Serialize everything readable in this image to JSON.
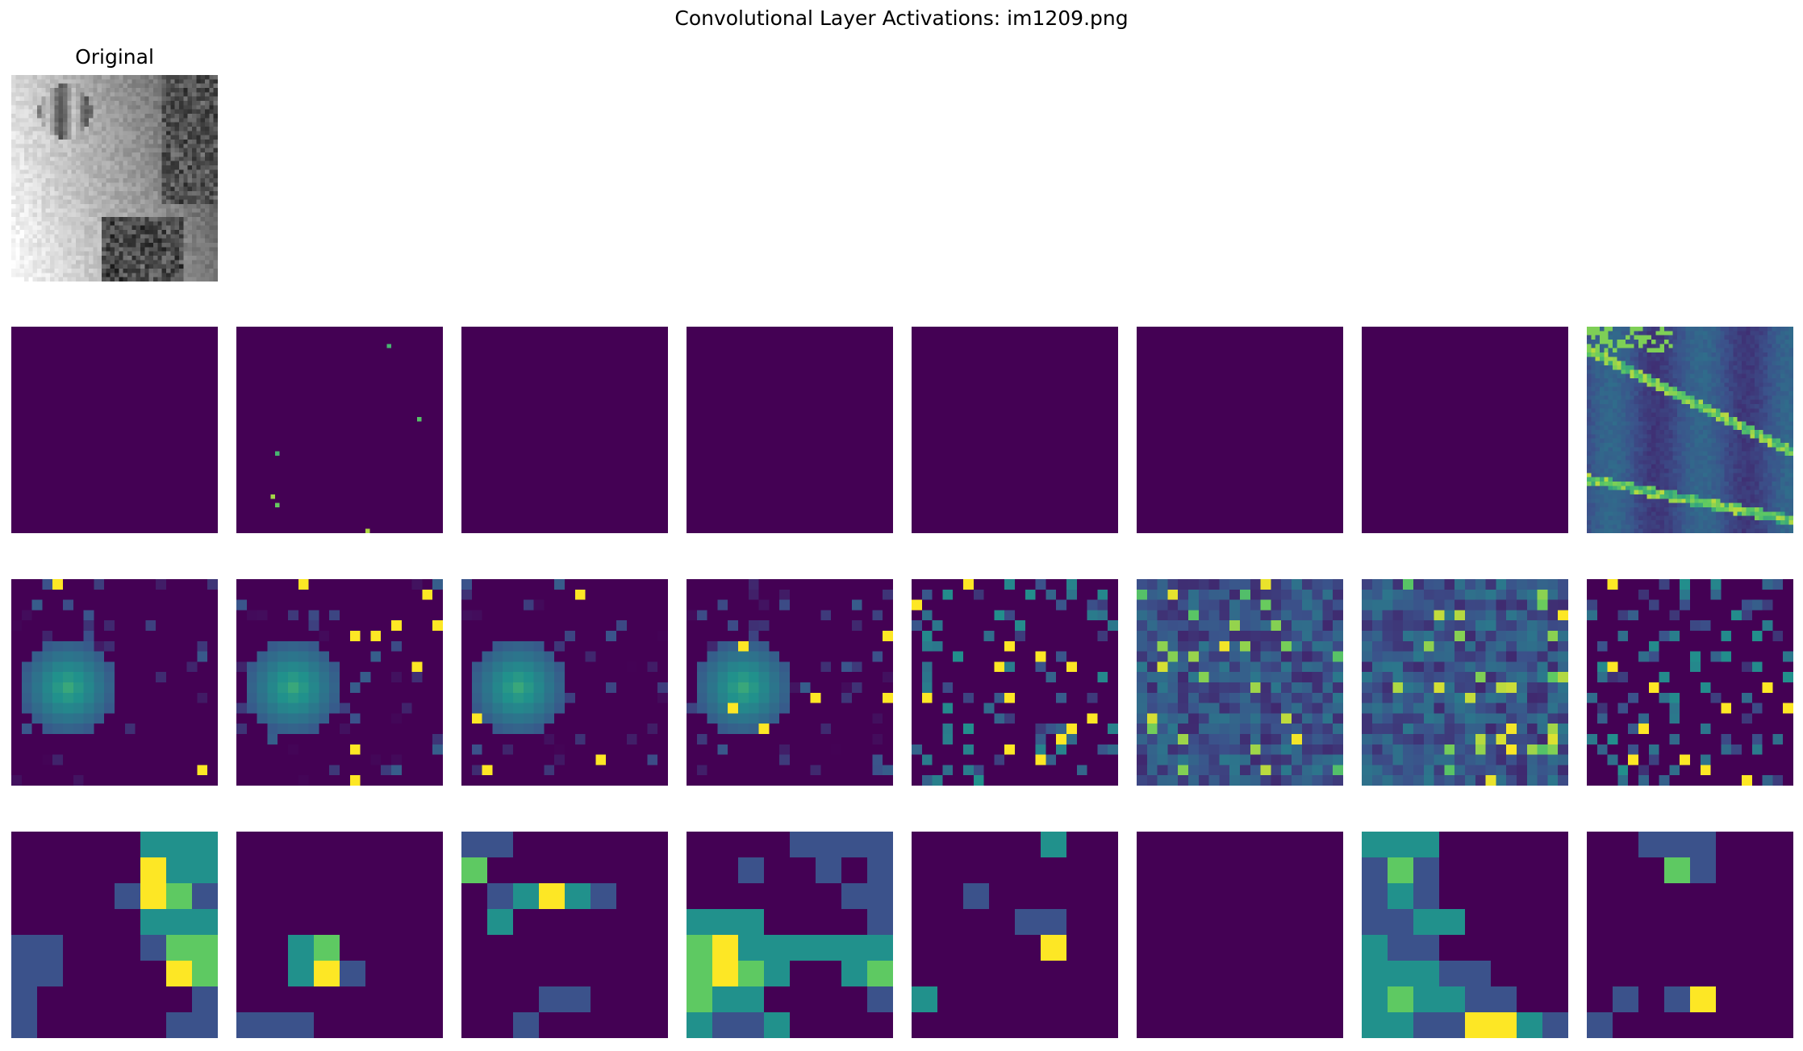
{
  "figure": {
    "title": "Convolutional Layer Activations: im1209.png",
    "original_label": "Original"
  },
  "colormap": {
    "name": "viridis",
    "stops": [
      "#440154",
      "#3b528b",
      "#21918c",
      "#5ec962",
      "#fde725"
    ]
  },
  "original_image": {
    "kind": "grayscale-photo",
    "description_text": ""
  },
  "layer1_maps": [
    {
      "size": 48,
      "mode": "empty",
      "seed": 11
    },
    {
      "size": 48,
      "mode": "sparse",
      "seed": 12
    },
    {
      "size": 48,
      "mode": "empty",
      "seed": 13
    },
    {
      "size": 48,
      "mode": "empty",
      "seed": 14
    },
    {
      "size": 48,
      "mode": "empty",
      "seed": 15
    },
    {
      "size": 48,
      "mode": "empty",
      "seed": 16
    },
    {
      "size": 48,
      "mode": "empty",
      "seed": 17
    },
    {
      "size": 48,
      "mode": "edges",
      "seed": 18
    }
  ],
  "layer2_maps": [
    {
      "size": 20,
      "mode": "blob",
      "seed": 21
    },
    {
      "size": 20,
      "mode": "blob",
      "seed": 22
    },
    {
      "size": 20,
      "mode": "blob",
      "seed": 23
    },
    {
      "size": 20,
      "mode": "blob",
      "seed": 24
    },
    {
      "size": 20,
      "mode": "scatter",
      "seed": 25
    },
    {
      "size": 20,
      "mode": "dense",
      "seed": 26
    },
    {
      "size": 20,
      "mode": "dense",
      "seed": 27
    },
    {
      "size": 20,
      "mode": "scatter",
      "seed": 28
    }
  ],
  "layer3_maps": [
    {
      "size": 8,
      "grid": [
        [
          0,
          0,
          0,
          0,
          0,
          2,
          2,
          2
        ],
        [
          0,
          0,
          0,
          0,
          0,
          4,
          2,
          2
        ],
        [
          0,
          0,
          0,
          0,
          1,
          4,
          3,
          1
        ],
        [
          0,
          0,
          0,
          0,
          0,
          2,
          2,
          2
        ],
        [
          1,
          1,
          0,
          0,
          0,
          1,
          3,
          3
        ],
        [
          1,
          1,
          0,
          0,
          0,
          0,
          4,
          3
        ],
        [
          1,
          0,
          0,
          0,
          0,
          0,
          0,
          1
        ],
        [
          1,
          0,
          0,
          0,
          0,
          0,
          1,
          1
        ]
      ]
    },
    {
      "size": 8,
      "grid": [
        [
          0,
          0,
          0,
          0,
          0,
          0,
          0,
          0
        ],
        [
          0,
          0,
          0,
          0,
          0,
          0,
          0,
          0
        ],
        [
          0,
          0,
          0,
          0,
          0,
          0,
          0,
          0
        ],
        [
          0,
          0,
          0,
          0,
          0,
          0,
          0,
          0
        ],
        [
          0,
          0,
          2,
          3,
          0,
          0,
          0,
          0
        ],
        [
          0,
          0,
          2,
          4,
          1,
          0,
          0,
          0
        ],
        [
          0,
          0,
          0,
          0,
          0,
          0,
          0,
          0
        ],
        [
          1,
          1,
          1,
          0,
          0,
          0,
          0,
          0
        ]
      ]
    },
    {
      "size": 8,
      "grid": [
        [
          1,
          1,
          0,
          0,
          0,
          0,
          0,
          0
        ],
        [
          3,
          0,
          0,
          0,
          0,
          0,
          0,
          0
        ],
        [
          0,
          1,
          2,
          4,
          2,
          1,
          0,
          0
        ],
        [
          0,
          2,
          0,
          0,
          0,
          0,
          0,
          0
        ],
        [
          0,
          0,
          0,
          0,
          0,
          0,
          0,
          0
        ],
        [
          0,
          0,
          0,
          0,
          0,
          0,
          0,
          0
        ],
        [
          0,
          0,
          0,
          1,
          1,
          0,
          0,
          0
        ],
        [
          0,
          0,
          1,
          0,
          0,
          0,
          0,
          0
        ]
      ]
    },
    {
      "size": 8,
      "grid": [
        [
          0,
          0,
          0,
          0,
          1,
          1,
          1,
          1
        ],
        [
          0,
          0,
          1,
          0,
          0,
          1,
          0,
          1
        ],
        [
          0,
          0,
          0,
          0,
          0,
          0,
          1,
          1
        ],
        [
          2,
          2,
          2,
          0,
          0,
          0,
          0,
          1
        ],
        [
          3,
          4,
          2,
          2,
          2,
          2,
          2,
          2
        ],
        [
          3,
          4,
          3,
          2,
          0,
          0,
          2,
          3
        ],
        [
          3,
          2,
          2,
          0,
          0,
          0,
          0,
          1
        ],
        [
          2,
          1,
          1,
          2,
          0,
          0,
          0,
          0
        ]
      ]
    },
    {
      "size": 8,
      "grid": [
        [
          0,
          0,
          0,
          0,
          0,
          2,
          0,
          0
        ],
        [
          0,
          0,
          0,
          0,
          0,
          0,
          0,
          0
        ],
        [
          0,
          0,
          1,
          0,
          0,
          0,
          0,
          0
        ],
        [
          0,
          0,
          0,
          0,
          1,
          1,
          0,
          0
        ],
        [
          0,
          0,
          0,
          0,
          0,
          4,
          0,
          0
        ],
        [
          0,
          0,
          0,
          0,
          0,
          0,
          0,
          0
        ],
        [
          2,
          0,
          0,
          0,
          0,
          0,
          0,
          0
        ],
        [
          0,
          0,
          0,
          0,
          0,
          0,
          0,
          0
        ]
      ]
    },
    {
      "size": 8,
      "grid": [
        [
          0,
          0,
          0,
          0,
          0,
          0,
          0,
          0
        ],
        [
          0,
          0,
          0,
          0,
          0,
          0,
          0,
          0
        ],
        [
          0,
          0,
          0,
          0,
          0,
          0,
          0,
          0
        ],
        [
          0,
          0,
          0,
          0,
          0,
          0,
          0,
          0
        ],
        [
          0,
          0,
          0,
          0,
          0,
          0,
          0,
          0
        ],
        [
          0,
          0,
          0,
          0,
          0,
          0,
          0,
          0
        ],
        [
          0,
          0,
          0,
          0,
          0,
          0,
          0,
          0
        ],
        [
          0,
          0,
          0,
          0,
          0,
          0,
          0,
          0
        ]
      ]
    },
    {
      "size": 8,
      "grid": [
        [
          2,
          2,
          2,
          0,
          0,
          0,
          0,
          0
        ],
        [
          1,
          3,
          1,
          0,
          0,
          0,
          0,
          0
        ],
        [
          1,
          2,
          1,
          0,
          0,
          0,
          0,
          0
        ],
        [
          1,
          1,
          2,
          2,
          0,
          0,
          0,
          0
        ],
        [
          2,
          1,
          1,
          0,
          0,
          0,
          0,
          0
        ],
        [
          2,
          2,
          2,
          1,
          1,
          0,
          0,
          0
        ],
        [
          2,
          3,
          2,
          2,
          1,
          1,
          0,
          0
        ],
        [
          2,
          2,
          1,
          1,
          4,
          4,
          2,
          1
        ]
      ]
    },
    {
      "size": 8,
      "grid": [
        [
          0,
          0,
          1,
          1,
          1,
          0,
          0,
          0
        ],
        [
          0,
          0,
          0,
          3,
          1,
          0,
          0,
          0
        ],
        [
          0,
          0,
          0,
          0,
          0,
          0,
          0,
          0
        ],
        [
          0,
          0,
          0,
          0,
          0,
          0,
          0,
          0
        ],
        [
          0,
          0,
          0,
          0,
          0,
          0,
          0,
          0
        ],
        [
          0,
          0,
          0,
          0,
          0,
          0,
          0,
          0
        ],
        [
          0,
          1,
          0,
          1,
          4,
          0,
          0,
          0
        ],
        [
          1,
          0,
          0,
          0,
          0,
          0,
          0,
          0
        ]
      ]
    }
  ]
}
